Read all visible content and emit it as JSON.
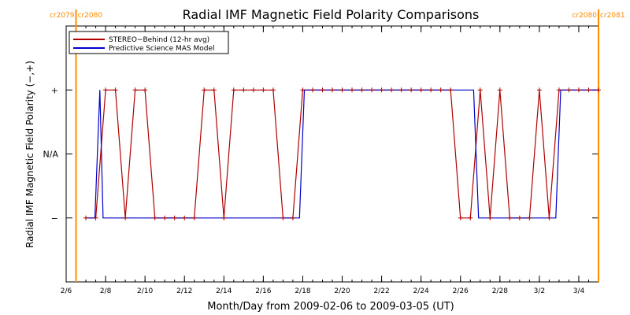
{
  "chart_data": {
    "type": "line",
    "title": "Radial IMF Magnetic Field Polarity Comparisons",
    "xlabel": "Month/Day from 2009-02-06 to 2009-03-05 (UT)",
    "ylabel": "Radial IMF Magnetic Field Polarity (−,+)",
    "x_start": "2009-02-06",
    "x_end": "2009-03-05",
    "xlim": [
      "2009-02-06",
      "2009-03-05"
    ],
    "ylim": [
      -2,
      2
    ],
    "x_ticks": [
      {
        "label": "2/6",
        "date": "2009-02-06"
      },
      {
        "label": "2/8",
        "date": "2009-02-08"
      },
      {
        "label": "2/10",
        "date": "2009-02-10"
      },
      {
        "label": "2/12",
        "date": "2009-02-12"
      },
      {
        "label": "2/14",
        "date": "2009-02-14"
      },
      {
        "label": "2/16",
        "date": "2009-02-16"
      },
      {
        "label": "2/18",
        "date": "2009-02-18"
      },
      {
        "label": "2/20",
        "date": "2009-02-20"
      },
      {
        "label": "2/22",
        "date": "2009-02-22"
      },
      {
        "label": "2/24",
        "date": "2009-02-24"
      },
      {
        "label": "2/26",
        "date": "2009-02-26"
      },
      {
        "label": "2/28",
        "date": "2009-02-28"
      },
      {
        "label": "3/2",
        "date": "2009-03-02"
      },
      {
        "label": "3/4",
        "date": "2009-03-04"
      }
    ],
    "y_ticks": [
      {
        "label": "+",
        "value": 1
      },
      {
        "label": "N/A",
        "value": 0
      },
      {
        "label": "−",
        "value": -1
      }
    ],
    "carrington_markers": [
      {
        "date": "2009-02-06 12:00",
        "label_left": "cr2079",
        "label_right": "cr2080",
        "color": "#ff8c00"
      },
      {
        "date": "2009-03-05 00:00",
        "label_left": "cr2080",
        "label_right": "cr2081",
        "color": "#ff8c00"
      }
    ],
    "legend": {
      "position": "top-left",
      "entries": [
        {
          "name": "STEREO−Behind (12-hr avg)",
          "color": "#b00000"
        },
        {
          "name": "Predictive Science MAS Model",
          "color": "#0000cc"
        }
      ]
    },
    "series": [
      {
        "name": "STEREO−Behind (12-hr avg)",
        "color": "#b00000",
        "marker": "+",
        "points": [
          [
            "2009-02-07 00:00",
            -1
          ],
          [
            "2009-02-07 12:00",
            -1
          ],
          [
            "2009-02-08 00:00",
            1
          ],
          [
            "2009-02-08 12:00",
            1
          ],
          [
            "2009-02-09 00:00",
            -1
          ],
          [
            "2009-02-09 12:00",
            1
          ],
          [
            "2009-02-10 00:00",
            1
          ],
          [
            "2009-02-10 12:00",
            -1
          ],
          [
            "2009-02-11 00:00",
            -1
          ],
          [
            "2009-02-11 12:00",
            -1
          ],
          [
            "2009-02-12 00:00",
            -1
          ],
          [
            "2009-02-12 12:00",
            -1
          ],
          [
            "2009-02-13 00:00",
            1
          ],
          [
            "2009-02-13 12:00",
            1
          ],
          [
            "2009-02-14 00:00",
            -1
          ],
          [
            "2009-02-14 12:00",
            1
          ],
          [
            "2009-02-15 00:00",
            1
          ],
          [
            "2009-02-15 12:00",
            1
          ],
          [
            "2009-02-16 00:00",
            1
          ],
          [
            "2009-02-16 12:00",
            1
          ],
          [
            "2009-02-17 00:00",
            -1
          ],
          [
            "2009-02-17 12:00",
            -1
          ],
          [
            "2009-02-18 00:00",
            1
          ],
          [
            "2009-02-18 12:00",
            1
          ],
          [
            "2009-02-19 00:00",
            1
          ],
          [
            "2009-02-19 12:00",
            1
          ],
          [
            "2009-02-20 00:00",
            1
          ],
          [
            "2009-02-20 12:00",
            1
          ],
          [
            "2009-02-21 00:00",
            1
          ],
          [
            "2009-02-21 12:00",
            1
          ],
          [
            "2009-02-22 00:00",
            1
          ],
          [
            "2009-02-22 12:00",
            1
          ],
          [
            "2009-02-23 00:00",
            1
          ],
          [
            "2009-02-23 12:00",
            1
          ],
          [
            "2009-02-24 00:00",
            1
          ],
          [
            "2009-02-24 12:00",
            1
          ],
          [
            "2009-02-25 00:00",
            1
          ],
          [
            "2009-02-25 12:00",
            1
          ],
          [
            "2009-02-26 00:00",
            -1
          ],
          [
            "2009-02-26 12:00",
            -1
          ],
          [
            "2009-02-27 00:00",
            1
          ],
          [
            "2009-02-27 12:00",
            -1
          ],
          [
            "2009-02-28 00:00",
            1
          ],
          [
            "2009-02-28 12:00",
            -1
          ],
          [
            "2009-03-01 00:00",
            -1
          ],
          [
            "2009-03-01 12:00",
            -1
          ],
          [
            "2009-03-02 00:00",
            1
          ],
          [
            "2009-03-02 12:00",
            -1
          ],
          [
            "2009-03-03 00:00",
            1
          ],
          [
            "2009-03-03 12:00",
            1
          ],
          [
            "2009-03-04 00:00",
            1
          ],
          [
            "2009-03-04 12:00",
            1
          ],
          [
            "2009-03-05 00:00",
            1
          ]
        ]
      },
      {
        "name": "Predictive Science MAS Model",
        "color": "#0000cc",
        "marker": "none",
        "points": [
          [
            "2009-02-07 00:00",
            -1
          ],
          [
            "2009-02-07 11:00",
            -1
          ],
          [
            "2009-02-07 17:00",
            1
          ],
          [
            "2009-02-07 21:00",
            -1
          ],
          [
            "2009-02-17 20:00",
            -1
          ],
          [
            "2009-02-18 02:00",
            1
          ],
          [
            "2009-02-26 16:00",
            1
          ],
          [
            "2009-02-26 22:00",
            -1
          ],
          [
            "2009-03-02 20:00",
            -1
          ],
          [
            "2009-03-03 02:00",
            1
          ],
          [
            "2009-03-05 00:00",
            1
          ]
        ]
      }
    ]
  }
}
